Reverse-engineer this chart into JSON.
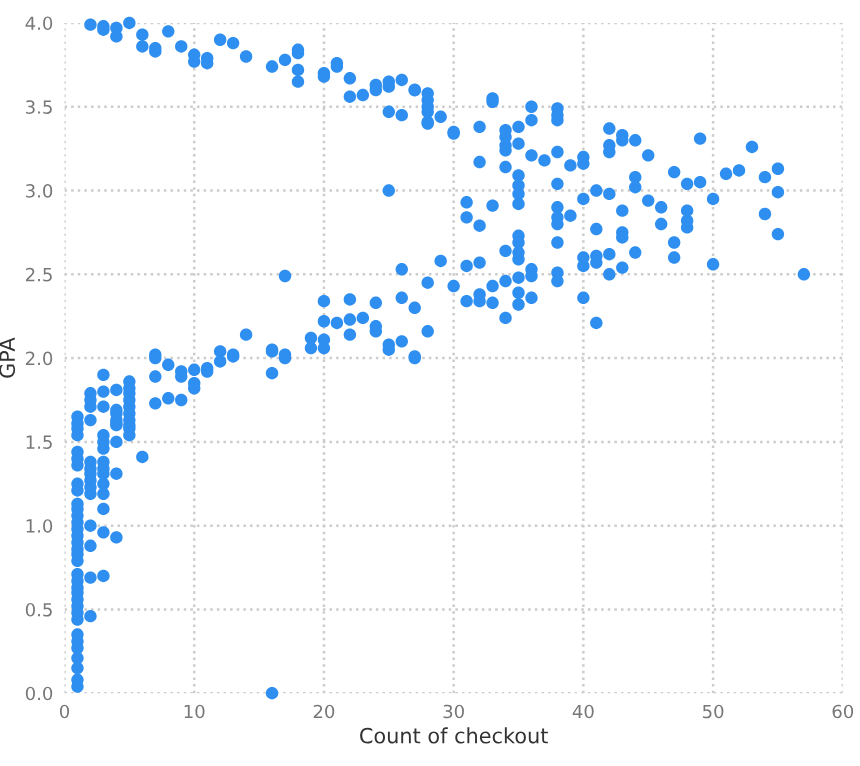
{
  "chart_data": {
    "type": "scatter",
    "xlabel": "Count of checkout",
    "ylabel": "GPA",
    "xlim": [
      0,
      60
    ],
    "ylim": [
      0,
      4
    ],
    "xticks": [
      0,
      10,
      20,
      30,
      40,
      50,
      60
    ],
    "yticks": [
      {
        "value": 0,
        "label": "0.0"
      },
      {
        "value": 0.5,
        "label": "0.5"
      },
      {
        "value": 1,
        "label": "1.0"
      },
      {
        "value": 1.5,
        "label": "1.5"
      },
      {
        "value": 2,
        "label": "2.0"
      },
      {
        "value": 2.5,
        "label": "2.5"
      },
      {
        "value": 3,
        "label": "3.0"
      },
      {
        "value": 3.5,
        "label": "3.5"
      },
      {
        "value": 4,
        "label": "4.0"
      }
    ],
    "grid": true,
    "marker": "circle",
    "series": [
      {
        "color": "#2f8ff0",
        "x": [
          2,
          3,
          3,
          4,
          4,
          5,
          6,
          6,
          7,
          7,
          8,
          9,
          10,
          10,
          11,
          11,
          12,
          13,
          14,
          16,
          17,
          18,
          18,
          18,
          18,
          20,
          20,
          21,
          21,
          22,
          22,
          23,
          24,
          24,
          25,
          25,
          25,
          26,
          26,
          27,
          25,
          17,
          26,
          26,
          28,
          28,
          27,
          28,
          20,
          20,
          20,
          19,
          21,
          22,
          22,
          22,
          23,
          24,
          24,
          24,
          25,
          25,
          26,
          27,
          17,
          16,
          14,
          13,
          12,
          7,
          7,
          8,
          9,
          9,
          10,
          11,
          11,
          12,
          13,
          16,
          16,
          17,
          19,
          20,
          27,
          7,
          7,
          8,
          9,
          10,
          10,
          6,
          5,
          5,
          5,
          5,
          5,
          5,
          5,
          5,
          5,
          5,
          4,
          4,
          4,
          4,
          4,
          4,
          4,
          4,
          4,
          3,
          3,
          3,
          3,
          3,
          3,
          3,
          3,
          3,
          3,
          3,
          3,
          3,
          3,
          2,
          2,
          2,
          2,
          2,
          2,
          2,
          2,
          2,
          2,
          2,
          2,
          2,
          2,
          1,
          1,
          1,
          1,
          1,
          1,
          1,
          1,
          1,
          1,
          1,
          1,
          1,
          1,
          1,
          1,
          1,
          1,
          1,
          1,
          1,
          1,
          1,
          1,
          1,
          1,
          1,
          1,
          1,
          1,
          1,
          1,
          1,
          1,
          16,
          27,
          28,
          28,
          28,
          28,
          28,
          29,
          30,
          30,
          32,
          32,
          31,
          31,
          32,
          33,
          33,
          33,
          34,
          34,
          34,
          34,
          34,
          35,
          35,
          35,
          35,
          35,
          35,
          35,
          35,
          35,
          35,
          34,
          36,
          36,
          36,
          37,
          38,
          38,
          38,
          38,
          38,
          38,
          38,
          38,
          39,
          38,
          39,
          40,
          40,
          41,
          40,
          42,
          42,
          42,
          42,
          43,
          43,
          44,
          44,
          44,
          45,
          45,
          46,
          46,
          43,
          41,
          43,
          43,
          44,
          47,
          48,
          48,
          48,
          48,
          49,
          49,
          50,
          51,
          52,
          53,
          54,
          55,
          55,
          54,
          55,
          57,
          50,
          47,
          47,
          40,
          40,
          41,
          41,
          42,
          42,
          40,
          41,
          38,
          38,
          36,
          36,
          36,
          35,
          35,
          35,
          34,
          34,
          33,
          33,
          32,
          32,
          32,
          31,
          31,
          30,
          29,
          43
        ],
        "values": [
          3.99,
          3.98,
          3.96,
          3.97,
          3.92,
          4.0,
          3.93,
          3.86,
          3.85,
          3.83,
          3.95,
          3.86,
          3.81,
          3.77,
          3.79,
          3.76,
          3.9,
          3.88,
          3.8,
          3.74,
          3.78,
          3.84,
          3.82,
          3.72,
          3.65,
          3.7,
          3.68,
          3.76,
          3.74,
          3.67,
          3.56,
          3.57,
          3.63,
          3.6,
          3.65,
          3.62,
          3.47,
          3.66,
          3.45,
          3.6,
          3.0,
          2.49,
          2.53,
          2.36,
          3.4,
          2.45,
          2.3,
          2.16,
          2.34,
          2.22,
          2.11,
          2.12,
          2.21,
          2.35,
          2.23,
          2.14,
          2.24,
          2.33,
          2.19,
          2.16,
          2.08,
          2.05,
          2.1,
          2.01,
          2.02,
          2.05,
          2.14,
          2.02,
          2.04,
          2.02,
          2.0,
          1.96,
          1.92,
          1.89,
          1.93,
          1.94,
          1.92,
          1.98,
          2.01,
          2.04,
          1.91,
          2.0,
          2.06,
          2.06,
          2.0,
          1.89,
          1.73,
          1.76,
          1.75,
          1.85,
          1.82,
          1.41,
          1.86,
          1.82,
          1.79,
          1.75,
          1.71,
          1.67,
          1.63,
          1.6,
          1.58,
          1.54,
          1.81,
          1.69,
          1.67,
          1.63,
          1.61,
          1.6,
          1.5,
          1.31,
          0.93,
          1.9,
          1.8,
          1.71,
          1.54,
          1.5,
          1.46,
          1.38,
          1.34,
          1.31,
          1.25,
          1.19,
          1.1,
          0.96,
          0.7,
          1.79,
          1.75,
          1.71,
          1.63,
          1.38,
          1.34,
          1.31,
          1.27,
          1.23,
          1.19,
          1.0,
          0.88,
          0.69,
          0.46,
          1.65,
          1.61,
          1.58,
          1.54,
          1.44,
          1.4,
          1.36,
          1.25,
          1.21,
          1.13,
          1.1,
          1.06,
          1.02,
          0.98,
          0.94,
          0.9,
          0.86,
          0.83,
          0.79,
          0.71,
          0.67,
          0.63,
          0.6,
          0.56,
          0.52,
          0.48,
          0.44,
          0.35,
          0.31,
          0.27,
          0.21,
          0.15,
          0.08,
          0.04,
          0.0,
          3.6,
          3.58,
          3.54,
          3.5,
          3.47,
          3.41,
          3.44,
          3.35,
          3.34,
          3.38,
          3.17,
          2.93,
          2.84,
          2.79,
          3.55,
          3.53,
          2.91,
          3.36,
          3.32,
          3.27,
          3.24,
          3.14,
          3.38,
          3.28,
          3.09,
          3.03,
          2.98,
          2.92,
          2.73,
          2.69,
          2.63,
          2.59,
          2.64,
          3.5,
          3.42,
          3.21,
          3.18,
          3.49,
          3.45,
          3.42,
          3.23,
          3.04,
          2.9,
          2.84,
          2.8,
          2.85,
          2.69,
          3.15,
          3.2,
          3.16,
          3.0,
          2.95,
          2.98,
          3.37,
          3.27,
          3.23,
          3.33,
          3.3,
          3.3,
          3.08,
          3.02,
          3.21,
          2.94,
          2.9,
          2.8,
          2.88,
          2.77,
          2.75,
          2.72,
          2.63,
          3.11,
          3.04,
          2.88,
          2.82,
          2.78,
          3.05,
          3.31,
          2.95,
          3.1,
          3.12,
          3.26,
          3.08,
          3.13,
          2.99,
          2.86,
          2.74,
          2.5,
          2.56,
          2.69,
          2.6,
          2.6,
          2.55,
          2.61,
          2.57,
          2.62,
          2.5,
          2.36,
          2.21,
          2.51,
          2.46,
          2.53,
          2.49,
          2.36,
          2.48,
          2.39,
          2.32,
          2.46,
          2.24,
          2.43,
          2.33,
          2.57,
          2.38,
          2.34,
          2.55,
          2.34,
          2.43,
          2.58,
          2.54
        ]
      }
    ]
  }
}
